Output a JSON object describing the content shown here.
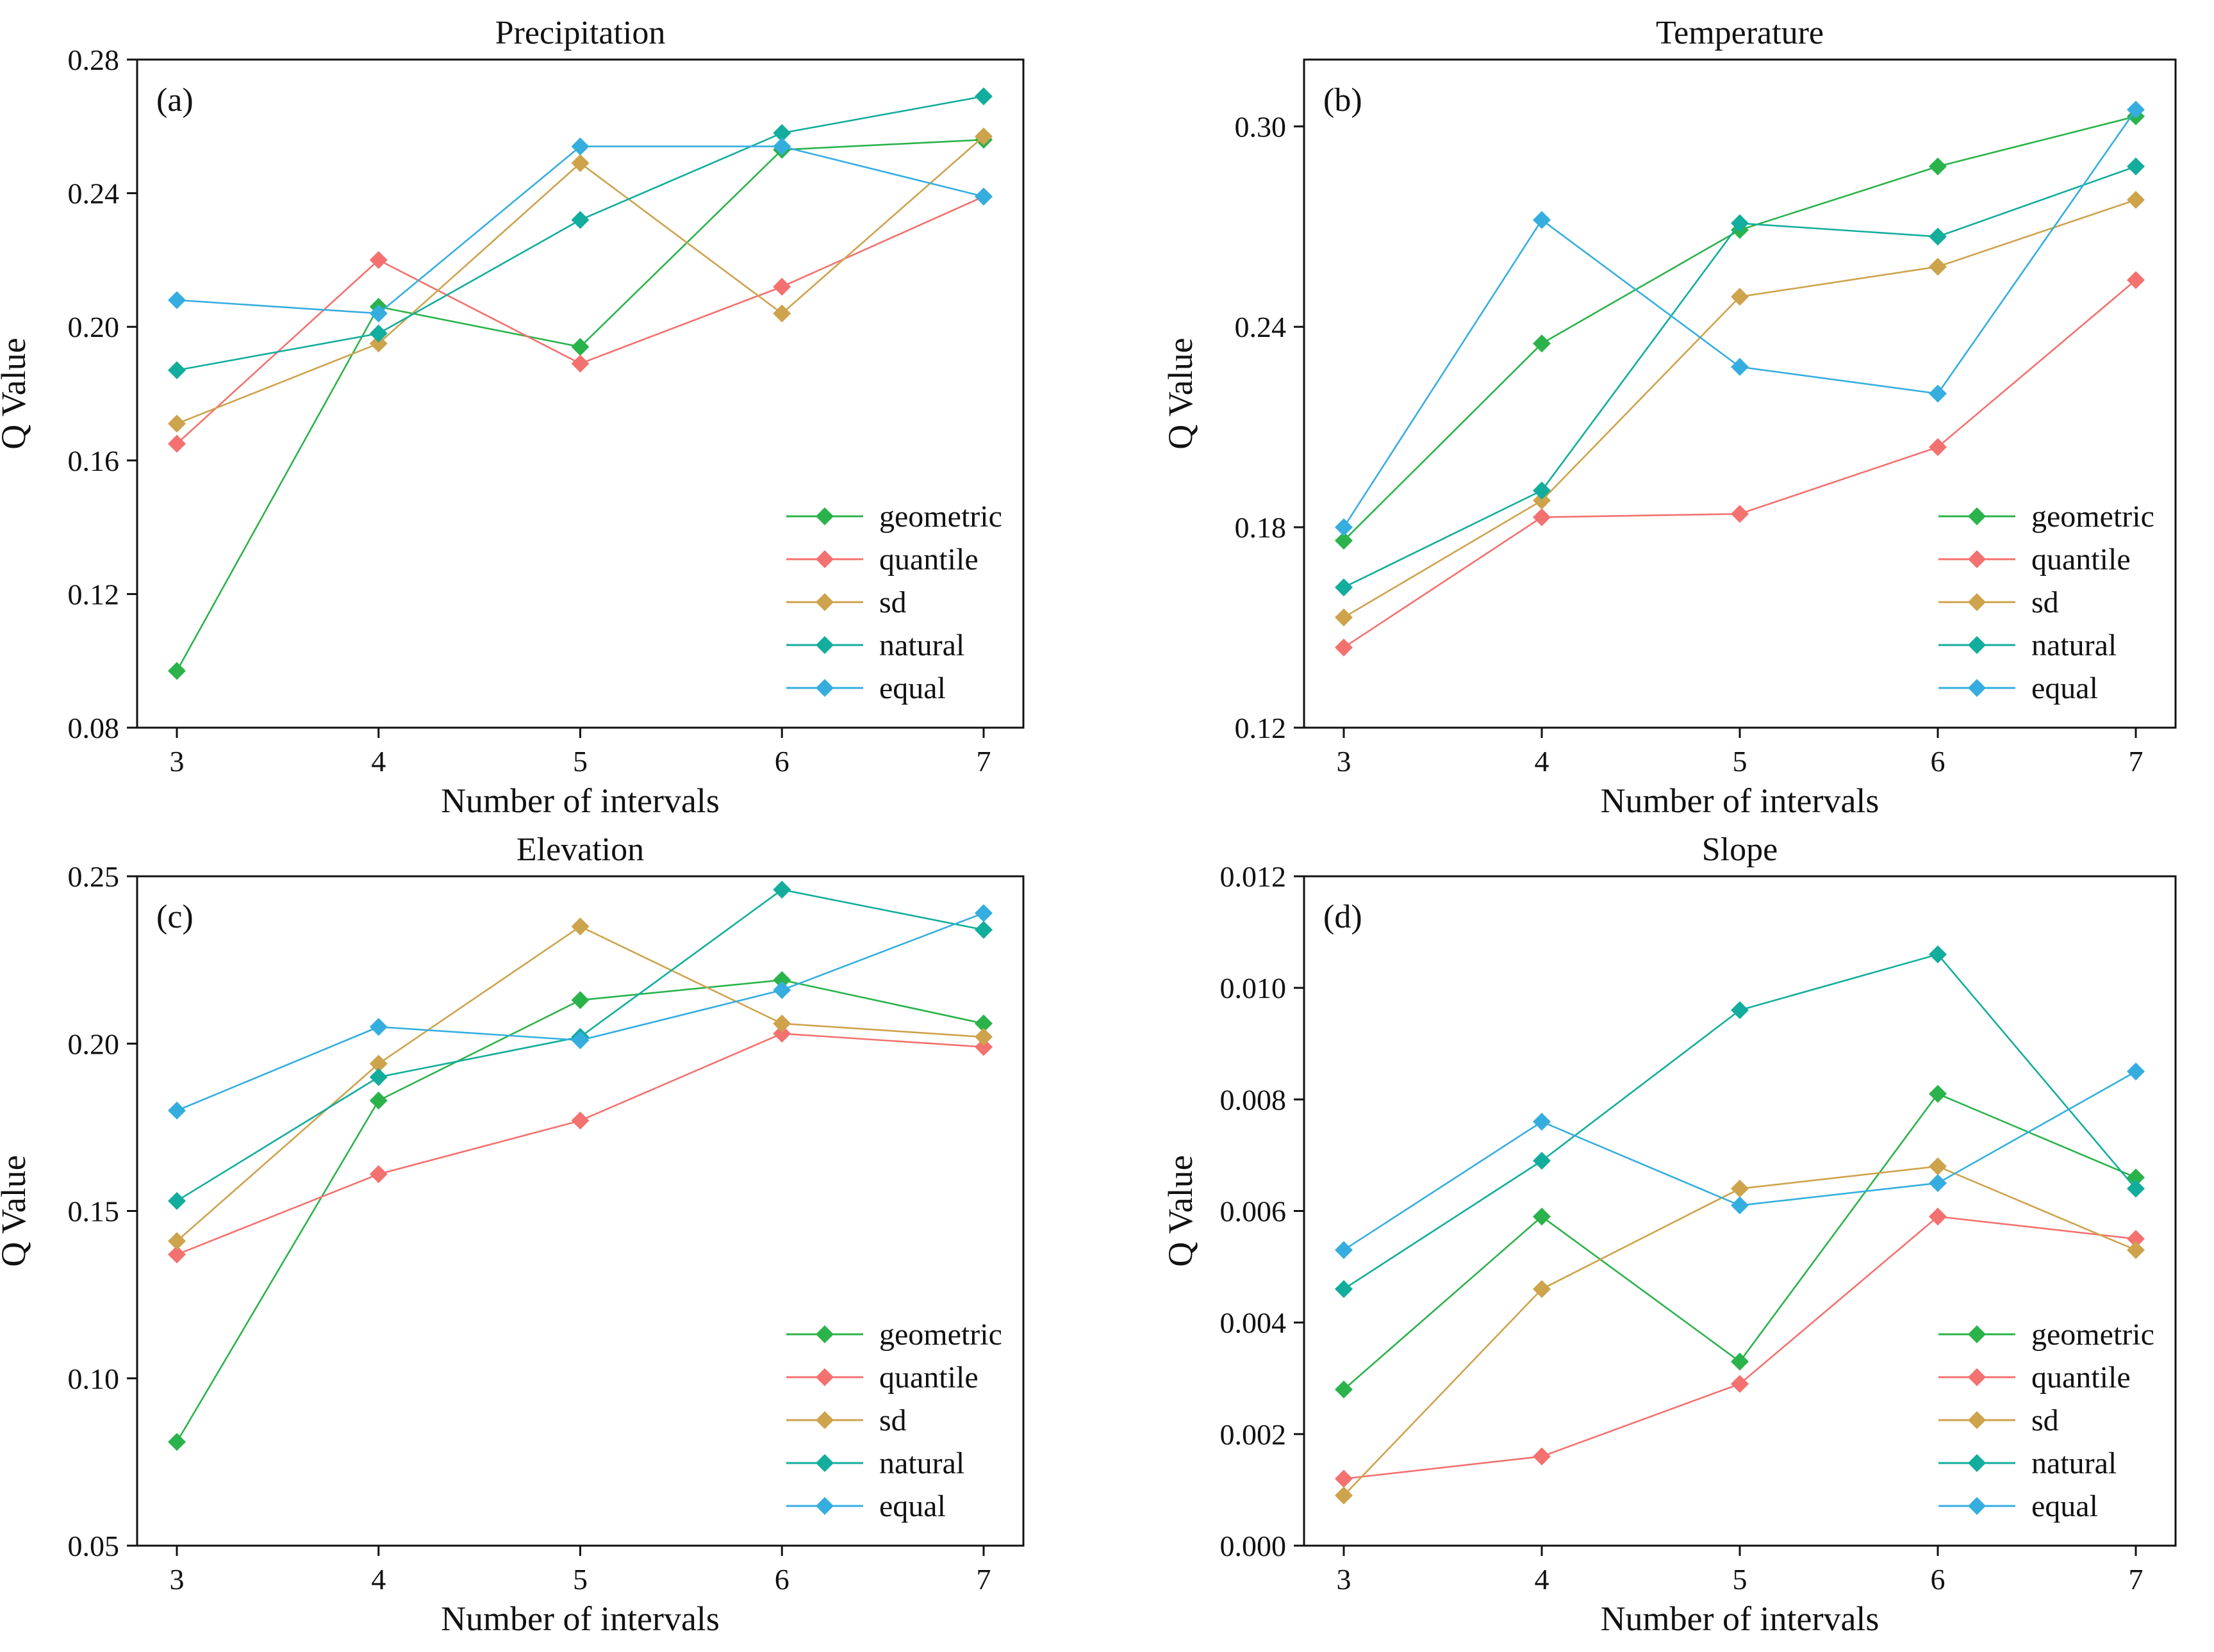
{
  "chart_data": [
    {
      "type": "line",
      "panel_label": "(a)",
      "title": "Precipitation",
      "xlabel": "Number of intervals",
      "ylabel": "Q Value",
      "x": [
        3,
        4,
        5,
        6,
        7
      ],
      "x_ticks": [
        "3",
        "4",
        "5",
        "6",
        "7"
      ],
      "ylim": [
        0.08,
        0.28
      ],
      "y_ticks": [
        "0.08",
        "0.12",
        "0.16",
        "0.20",
        "0.24",
        "0.28"
      ],
      "legend_position": "bottom-right",
      "series": [
        {
          "name": "geometric",
          "color": "#2ab34a",
          "values": [
            0.097,
            0.206,
            0.194,
            0.253,
            0.256
          ]
        },
        {
          "name": "quantile",
          "color": "#f3716f",
          "values": [
            0.165,
            0.22,
            0.189,
            0.212,
            0.239
          ]
        },
        {
          "name": "sd",
          "color": "#cda34c",
          "values": [
            0.171,
            0.195,
            0.249,
            0.204,
            0.257
          ]
        },
        {
          "name": "natural",
          "color": "#12ad9c",
          "values": [
            0.187,
            0.198,
            0.232,
            0.258,
            0.269
          ]
        },
        {
          "name": "equal",
          "color": "#35aedf",
          "values": [
            0.208,
            0.204,
            0.254,
            0.254,
            0.239
          ]
        }
      ]
    },
    {
      "type": "line",
      "panel_label": "(b)",
      "title": "Temperature",
      "xlabel": "Number of intervals",
      "ylabel": "Q Value",
      "x": [
        3,
        4,
        5,
        6,
        7
      ],
      "x_ticks": [
        "3",
        "4",
        "5",
        "6",
        "7"
      ],
      "ylim": [
        0.12,
        0.32
      ],
      "y_ticks": [
        "0.12",
        "0.18",
        "0.24",
        "0.30"
      ],
      "legend_position": "bottom-right",
      "series": [
        {
          "name": "geometric",
          "color": "#2ab34a",
          "values": [
            0.176,
            0.235,
            0.269,
            0.288,
            0.303
          ]
        },
        {
          "name": "quantile",
          "color": "#f3716f",
          "values": [
            0.144,
            0.183,
            0.184,
            0.204,
            0.254
          ]
        },
        {
          "name": "sd",
          "color": "#cda34c",
          "values": [
            0.153,
            0.188,
            0.249,
            0.258,
            0.278
          ]
        },
        {
          "name": "natural",
          "color": "#12ad9c",
          "values": [
            0.162,
            0.191,
            0.271,
            0.267,
            0.288
          ]
        },
        {
          "name": "equal",
          "color": "#35aedf",
          "values": [
            0.18,
            0.272,
            0.228,
            0.22,
            0.305
          ]
        }
      ]
    },
    {
      "type": "line",
      "panel_label": "(c)",
      "title": "Elevation",
      "xlabel": "Number of intervals",
      "ylabel": "Q Value",
      "x": [
        3,
        4,
        5,
        6,
        7
      ],
      "x_ticks": [
        "3",
        "4",
        "5",
        "6",
        "7"
      ],
      "ylim": [
        0.05,
        0.25
      ],
      "y_ticks": [
        "0.05",
        "0.10",
        "0.15",
        "0.20",
        "0.25"
      ],
      "legend_position": "bottom-right",
      "series": [
        {
          "name": "geometric",
          "color": "#2ab34a",
          "values": [
            0.081,
            0.183,
            0.213,
            0.219,
            0.206
          ]
        },
        {
          "name": "quantile",
          "color": "#f3716f",
          "values": [
            0.137,
            0.161,
            0.177,
            0.203,
            0.199
          ]
        },
        {
          "name": "sd",
          "color": "#cda34c",
          "values": [
            0.141,
            0.194,
            0.235,
            0.206,
            0.202
          ]
        },
        {
          "name": "natural",
          "color": "#12ad9c",
          "values": [
            0.153,
            0.19,
            0.202,
            0.246,
            0.234
          ]
        },
        {
          "name": "equal",
          "color": "#35aedf",
          "values": [
            0.18,
            0.205,
            0.201,
            0.216,
            0.239
          ]
        }
      ]
    },
    {
      "type": "line",
      "panel_label": "(d)",
      "title": "Slope",
      "xlabel": "Number of intervals",
      "ylabel": "Q Value",
      "x": [
        3,
        4,
        5,
        6,
        7
      ],
      "x_ticks": [
        "3",
        "4",
        "5",
        "6",
        "7"
      ],
      "ylim": [
        0.0,
        0.012
      ],
      "y_ticks": [
        "0.000",
        "0.002",
        "0.004",
        "0.006",
        "0.008",
        "0.010",
        "0.012"
      ],
      "legend_position": "bottom-right",
      "series": [
        {
          "name": "geometric",
          "color": "#2ab34a",
          "values": [
            0.0028,
            0.0059,
            0.0033,
            0.0081,
            0.0066
          ]
        },
        {
          "name": "quantile",
          "color": "#f3716f",
          "values": [
            0.0012,
            0.0016,
            0.0029,
            0.0059,
            0.0055
          ]
        },
        {
          "name": "sd",
          "color": "#cda34c",
          "values": [
            0.0009,
            0.0046,
            0.0064,
            0.0068,
            0.0053
          ]
        },
        {
          "name": "natural",
          "color": "#12ad9c",
          "values": [
            0.0046,
            0.0069,
            0.0096,
            0.0106,
            0.0064
          ]
        },
        {
          "name": "equal",
          "color": "#35aedf",
          "values": [
            0.0053,
            0.0076,
            0.0061,
            0.0065,
            0.0085
          ]
        }
      ]
    }
  ]
}
